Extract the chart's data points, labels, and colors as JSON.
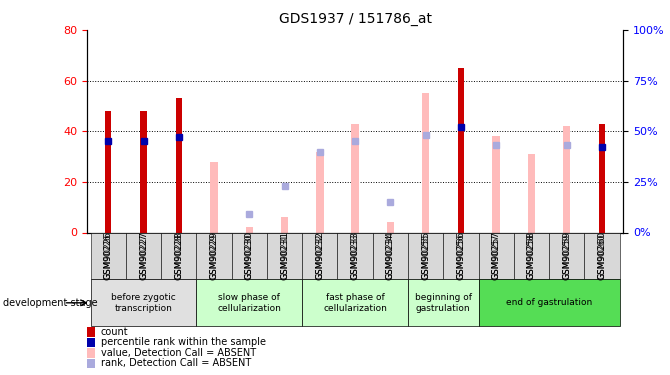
{
  "title": "GDS1937 / 151786_at",
  "samples": [
    "GSM90226",
    "GSM90227",
    "GSM90228",
    "GSM90229",
    "GSM90230",
    "GSM90231",
    "GSM90232",
    "GSM90233",
    "GSM90234",
    "GSM90255",
    "GSM90256",
    "GSM90257",
    "GSM90258",
    "GSM90259",
    "GSM90260"
  ],
  "count_values": [
    48,
    48,
    53,
    null,
    null,
    null,
    null,
    null,
    null,
    null,
    65,
    null,
    null,
    null,
    43
  ],
  "percentile_rank": [
    45,
    45,
    47,
    null,
    null,
    null,
    null,
    null,
    null,
    null,
    52,
    null,
    null,
    null,
    42
  ],
  "absent_value": [
    null,
    null,
    null,
    28,
    2,
    6,
    32,
    43,
    4,
    55,
    null,
    38,
    31,
    42,
    null
  ],
  "absent_rank": [
    null,
    null,
    null,
    null,
    9,
    23,
    40,
    45,
    15,
    48,
    null,
    43,
    null,
    43,
    null
  ],
  "count_color": "#cc0000",
  "percentile_color": "#0000aa",
  "absent_value_color": "#ffbbbb",
  "absent_rank_color": "#aaaadd",
  "ylim_left": [
    0,
    80
  ],
  "ylim_right": [
    0,
    100
  ],
  "yticks_left": [
    0,
    20,
    40,
    60,
    80
  ],
  "yticks_right": [
    0,
    25,
    50,
    75,
    100
  ],
  "yticklabels_right": [
    "0%",
    "25%",
    "50%",
    "75%",
    "100%"
  ],
  "stage_groups": [
    {
      "label": "before zygotic\ntranscription",
      "samples": [
        "GSM90226",
        "GSM90227",
        "GSM90228"
      ],
      "color": "#e0e0e0"
    },
    {
      "label": "slow phase of\ncellularization",
      "samples": [
        "GSM90229",
        "GSM90230",
        "GSM90231"
      ],
      "color": "#ccffcc"
    },
    {
      "label": "fast phase of\ncellularization",
      "samples": [
        "GSM90232",
        "GSM90233",
        "GSM90234"
      ],
      "color": "#ccffcc"
    },
    {
      "label": "beginning of\ngastrulation",
      "samples": [
        "GSM90255",
        "GSM90256"
      ],
      "color": "#ccffcc"
    },
    {
      "label": "end of gastrulation",
      "samples": [
        "GSM90257",
        "GSM90258",
        "GSM90259",
        "GSM90260"
      ],
      "color": "#55dd55"
    }
  ],
  "legend_items": [
    {
      "label": "count",
      "color": "#cc0000"
    },
    {
      "label": "percentile rank within the sample",
      "color": "#0000aa"
    },
    {
      "label": "value, Detection Call = ABSENT",
      "color": "#ffbbbb"
    },
    {
      "label": "rank, Detection Call = ABSENT",
      "color": "#aaaadd"
    }
  ],
  "background_color": "#ffffff"
}
